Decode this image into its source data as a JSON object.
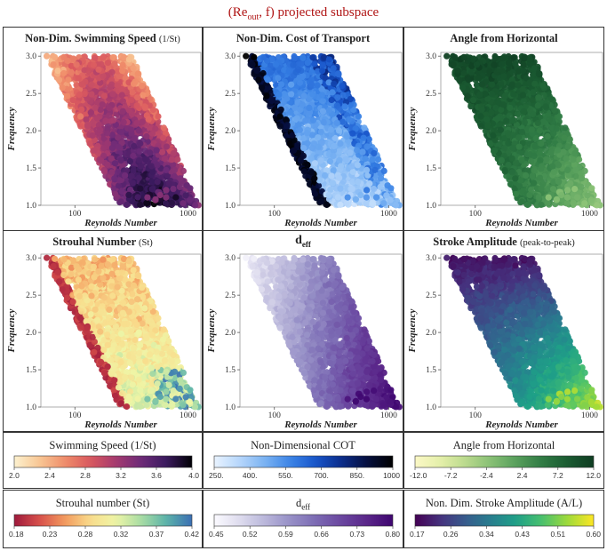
{
  "figure": {
    "suptitle": "(Re_out, f) projected subspace",
    "suptitle_main": "(Re",
    "suptitle_sub": "out",
    "suptitle_rest": ", f) projected subspace"
  },
  "axes": {
    "xlabel": "Reynolds Number",
    "ylabel": "Frequency",
    "xscale": "log",
    "xlim": [
      50,
      1300
    ],
    "ylim": [
      1.0,
      3.05
    ],
    "xticks": [
      100,
      1000
    ],
    "xtick_labels": [
      "100",
      "1000"
    ],
    "yticks": [
      1.0,
      1.5,
      2.0,
      2.5,
      3.0
    ],
    "ytick_labels": [
      "1.0",
      "1.5",
      "2.0",
      "2.5",
      "3.0"
    ]
  },
  "chart_data": [
    {
      "type": "scatter",
      "title": "Non-Dim. Swimming Speed",
      "title_suffix": "(1/St)",
      "xlabel": "Reynolds Number",
      "ylabel": "Frequency",
      "colormap": "magma-reversed",
      "color_variable": "Swimming Speed (1/St)",
      "color_range": [
        2.0,
        4.0
      ],
      "pattern": "color increases toward lower frequency and mid Reynolds number",
      "point_region": "parallelogram: Re 55–320 at f=3.0, Re 250–1250 at f=1.0"
    },
    {
      "type": "scatter",
      "title": "Non-Dim. Cost of Transport",
      "title_suffix": "",
      "xlabel": "Reynolds Number",
      "ylabel": "Frequency",
      "colormap": "blues",
      "color_variable": "Non-Dimensional COT",
      "color_range": [
        250,
        1000
      ],
      "pattern": "high COT along upper (low-Re) edge, light interior, mixed near lower right",
      "point_region": "parallelogram: Re 55–320 at f=3.0, Re 250–1250 at f=1.0"
    },
    {
      "type": "scatter",
      "title": "Angle from Horizontal",
      "title_suffix": "",
      "xlabel": "Reynolds Number",
      "ylabel": "Frequency",
      "colormap": "yellow-green",
      "color_variable": "Angle from Horizontal",
      "color_range": [
        -12.0,
        12.0
      ],
      "pattern": "dark green at high frequency, yellow at low frequency / high Re",
      "point_region": "parallelogram: Re 55–320 at f=3.0, Re 250–1250 at f=1.0"
    },
    {
      "type": "scatter",
      "title": "Strouhal Number",
      "title_suffix": "(St)",
      "xlabel": "Reynolds Number",
      "ylabel": "Frequency",
      "colormap": "spectral",
      "color_variable": "Strouhal number (St)",
      "color_range": [
        0.18,
        0.42
      ],
      "pattern": "red at upper-left edge, yellow/green in middle, blue scattered at lower right",
      "point_region": "parallelogram: Re 55–320 at f=3.0, Re 250–1250 at f=1.0"
    },
    {
      "type": "scatter",
      "title": "d",
      "title_sub": "eff",
      "title_suffix": "",
      "xlabel": "Reynolds Number",
      "ylabel": "Frequency",
      "colormap": "purples",
      "color_variable": "d_eff",
      "color_range": [
        0.45,
        0.8
      ],
      "pattern": "light at upper left, deep purple toward lower right",
      "point_region": "parallelogram: Re 55–320 at f=3.0, Re 250–1250 at f=1.0"
    },
    {
      "type": "scatter",
      "title": "Stroke Amplitude",
      "title_suffix": "(peak-to-peak)",
      "xlabel": "Reynolds Number",
      "ylabel": "Frequency",
      "colormap": "viridis",
      "color_variable": "Non. Dim. Stroke Amplitude (A/L)",
      "color_range": [
        0.17,
        0.6
      ],
      "pattern": "dark purple at high frequency, green then yellow toward low frequency / high Re",
      "point_region": "parallelogram: Re 55–320 at f=3.0, Re 250–1250 at f=1.0"
    }
  ],
  "colorbars": [
    {
      "label": "Swimming Speed (1/St)",
      "label_main": "Swimming Speed (1/St)",
      "label_sub": "",
      "colormap": "magma-reversed",
      "ticks": [
        "2.0",
        "2.4",
        "2.8",
        "3.2",
        "3.6",
        "4.0"
      ]
    },
    {
      "label": "Non-Dimensional COT",
      "label_main": "Non-Dimensional COT",
      "label_sub": "",
      "colormap": "blues",
      "ticks": [
        "250.",
        "400.",
        "550.",
        "700.",
        "850.",
        "1000"
      ]
    },
    {
      "label": "Angle from Horizontal",
      "label_main": "Angle from Horizontal",
      "label_sub": "",
      "colormap": "yellow-green",
      "ticks": [
        "-12.0",
        "-7.2",
        "-2.4",
        "2.4",
        "7.2",
        "12.0"
      ]
    },
    {
      "label": "Strouhal number (St)",
      "label_main": "Strouhal number (St)",
      "label_sub": "",
      "colormap": "spectral",
      "ticks": [
        "0.18",
        "0.23",
        "0.28",
        "0.32",
        "0.37",
        "0.42"
      ]
    },
    {
      "label": "d_eff",
      "label_main": "d",
      "label_sub": "eff",
      "colormap": "purples",
      "ticks": [
        "0.45",
        "0.52",
        "0.59",
        "0.66",
        "0.73",
        "0.80"
      ]
    },
    {
      "label": "Non. Dim. Stroke Amplitude (A/L)",
      "label_main": "Non. Dim. Stroke Amplitude (A/L)",
      "label_sub": "",
      "colormap": "viridis",
      "ticks": [
        "0.17",
        "0.26",
        "0.34",
        "0.43",
        "0.51",
        "0.60"
      ]
    }
  ],
  "colormaps": {
    "magma-reversed": [
      "#fcf1cf",
      "#f8c693",
      "#ef8c6a",
      "#d9585f",
      "#a53a6f",
      "#6c2a78",
      "#3a1a5e",
      "#000004"
    ],
    "blues": [
      "#e9f3ff",
      "#b6d6fb",
      "#79b2f2",
      "#3a83e6",
      "#1754c9",
      "#0b2c8a",
      "#060f3e",
      "#000000"
    ],
    "yellow-green": [
      "#fbf8c6",
      "#e4efa9",
      "#b9d98c",
      "#86bf74",
      "#569e5b",
      "#2f7a44",
      "#1a5a31",
      "#0f3d22"
    ],
    "spectral": [
      "#9e1a3c",
      "#d8504b",
      "#f29a5e",
      "#f9dc8c",
      "#eef5a6",
      "#a8dca4",
      "#5bb2a9",
      "#3b6fb3"
    ],
    "purples": [
      "#fbfaff",
      "#dedcee",
      "#b9b6da",
      "#968fc6",
      "#7b6ab3",
      "#6a469f",
      "#5a2689",
      "#3f0670"
    ],
    "viridis": [
      "#440154",
      "#46327e",
      "#365c8d",
      "#277f8e",
      "#1fa187",
      "#4ac16d",
      "#a0da39",
      "#fde725"
    ]
  }
}
